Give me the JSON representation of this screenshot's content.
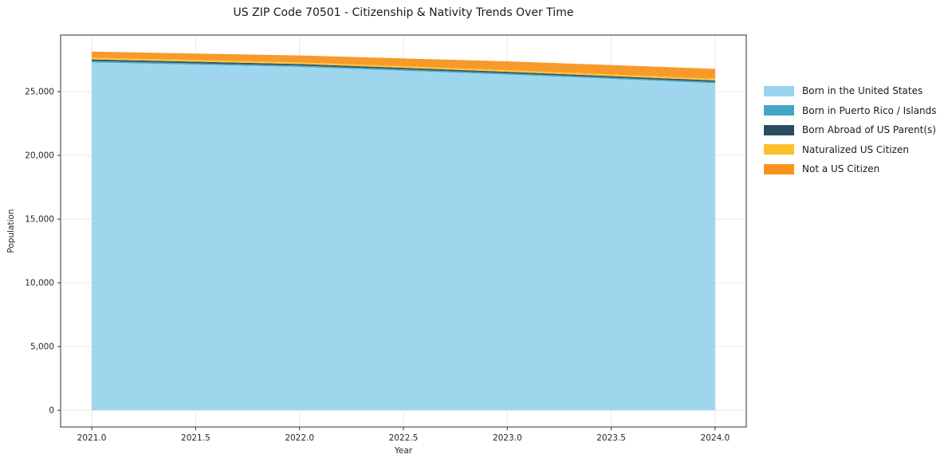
{
  "chart_data": {
    "type": "area",
    "stacked": true,
    "title": "US ZIP Code 70501 - Citizenship & Nativity Trends Over Time",
    "xlabel": "Year",
    "ylabel": "Population",
    "x": [
      2021,
      2022,
      2023,
      2024
    ],
    "series": [
      {
        "name": "Born in the United States",
        "color": "#98d4ec",
        "values": [
          27290,
          26940,
          26340,
          25660
        ]
      },
      {
        "name": "Born in Puerto Rico / Islands",
        "color": "#42a7c5",
        "values": [
          110,
          100,
          100,
          100
        ]
      },
      {
        "name": "Born Abroad of US Parent(s)",
        "color": "#2a4d5e",
        "values": [
          130,
          130,
          120,
          120
        ]
      },
      {
        "name": "Naturalized US Citizen",
        "color": "#fcc02e",
        "values": [
          140,
          130,
          130,
          130
        ]
      },
      {
        "name": "Not a US Citizen",
        "color": "#f8941d",
        "values": [
          470,
          540,
          690,
          780
        ]
      }
    ],
    "xlim": [
      2020.85,
      2024.15
    ],
    "ylim": [
      -1310,
      29440
    ],
    "xticks": {
      "values": [
        2021,
        2021.5,
        2022,
        2022.5,
        2023,
        2023.5,
        2024
      ],
      "labels": [
        "2021.0",
        "2021.5",
        "2022.0",
        "2022.5",
        "2023.0",
        "2023.5",
        "2024.0"
      ]
    },
    "yticks": {
      "values": [
        0,
        5000,
        10000,
        15000,
        20000,
        25000
      ],
      "labels": [
        "0",
        "5,000",
        "10,000",
        "15,000",
        "20,000",
        "25,000"
      ]
    },
    "grid": true,
    "legend_position": "right-outside"
  }
}
